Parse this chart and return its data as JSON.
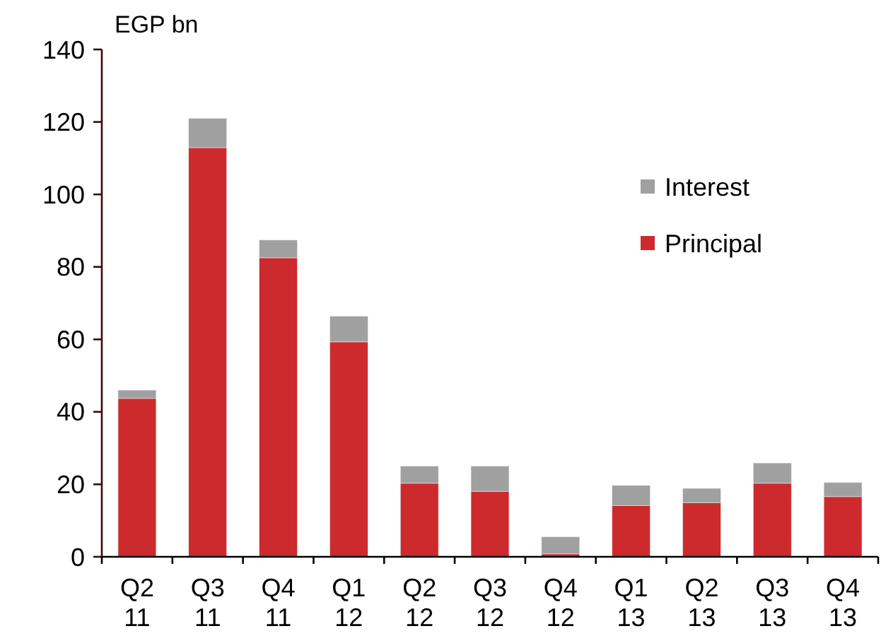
{
  "chart_data": {
    "type": "bar",
    "ylabel": "EGP bn",
    "stacked": true,
    "legend": "right",
    "grid": false,
    "categories": [
      "Q2 11",
      "Q3 11",
      "Q4 11",
      "Q1 12",
      "Q2 12",
      "Q3 12",
      "Q4 12",
      "Q1 13",
      "Q2 13",
      "Q3 13",
      "Q4 13"
    ],
    "ylim": [
      0,
      140
    ],
    "yticks": [
      0,
      20,
      40,
      60,
      80,
      100,
      120,
      140
    ],
    "series": [
      {
        "name": "Principal",
        "color": "#cc2a2d",
        "values": [
          43.7,
          112.9,
          82.5,
          59.3,
          20.3,
          18.0,
          0.8,
          14.1,
          14.9,
          20.3,
          16.6
        ]
      },
      {
        "name": "Interest",
        "color": "#a0a0a0",
        "values": [
          2.3,
          8.1,
          4.9,
          7.1,
          4.7,
          7.0,
          4.7,
          5.6,
          4.0,
          5.6,
          3.9
        ]
      }
    ]
  }
}
